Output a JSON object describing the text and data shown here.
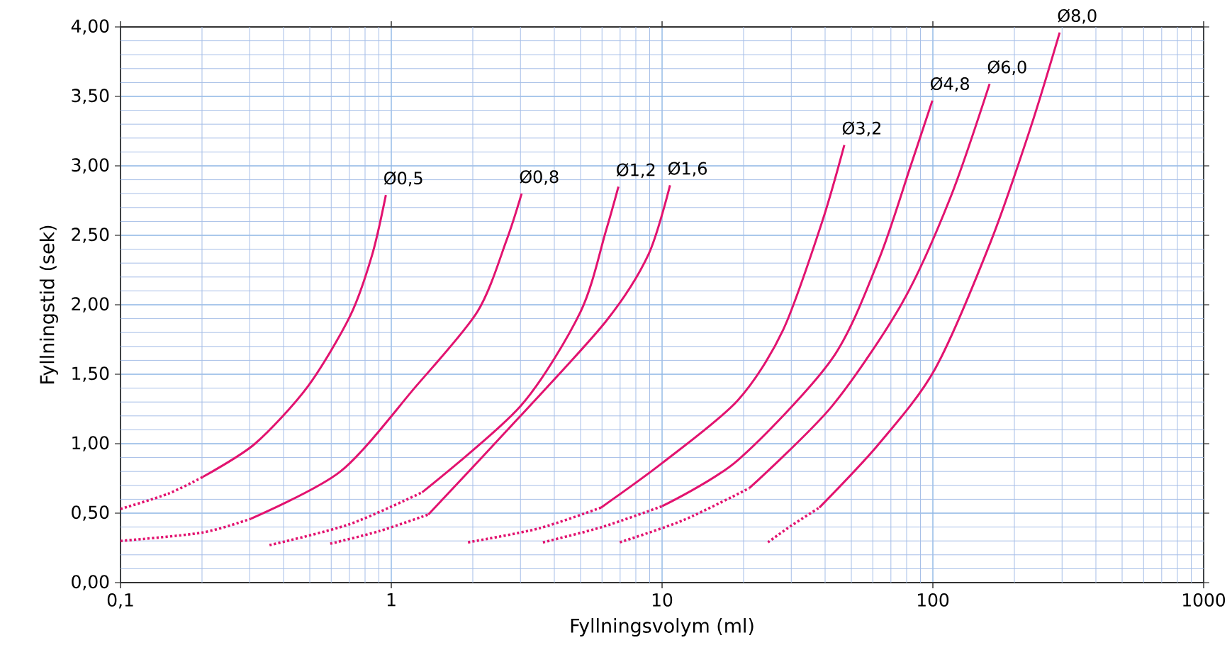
{
  "chart_data": {
    "type": "line",
    "xlabel": "Fyllningsvolym (ml)",
    "ylabel": "Fyllningstid (sek)",
    "log": "x",
    "grid": true,
    "legend": false,
    "marker": "none",
    "xlim": [
      0.1,
      1000
    ],
    "ylim": [
      0,
      4
    ],
    "xticks": [
      {
        "value": 0.1,
        "label": "0,1"
      },
      1,
      10,
      100,
      1000,
      {
        "value": 0.2,
        "label": null
      },
      {
        "value": 0.3,
        "label": null
      },
      {
        "value": 0.4,
        "label": null
      },
      {
        "value": 0.5,
        "label": null
      },
      {
        "value": 0.6,
        "label": null
      },
      {
        "value": 0.7,
        "label": null
      },
      {
        "value": 0.8,
        "label": null
      },
      {
        "value": 0.9,
        "label": null
      },
      {
        "value": 2,
        "label": null
      },
      {
        "value": 3,
        "label": null
      },
      {
        "value": 4,
        "label": null
      },
      {
        "value": 5,
        "label": null
      },
      {
        "value": 6,
        "label": null
      },
      {
        "value": 7,
        "label": null
      },
      {
        "value": 8,
        "label": null
      },
      {
        "value": 9,
        "label": null
      },
      {
        "value": 20,
        "label": null
      },
      {
        "value": 30,
        "label": null
      },
      {
        "value": 40,
        "label": null
      },
      {
        "value": 50,
        "label": null
      },
      {
        "value": 60,
        "label": null
      },
      {
        "value": 70,
        "label": null
      },
      {
        "value": 80,
        "label": null
      },
      {
        "value": 90,
        "label": null
      },
      {
        "value": 200,
        "label": null
      },
      {
        "value": 300,
        "label": null
      },
      {
        "value": 400,
        "label": null
      },
      {
        "value": 500,
        "label": null
      },
      {
        "value": 600,
        "label": null
      },
      {
        "value": 700,
        "label": null
      },
      {
        "value": 800,
        "label": null
      },
      {
        "value": 900,
        "label": null
      }
    ],
    "yticks": [
      {
        "value": 0,
        "label": "0,00"
      },
      {
        "value": 0.5,
        "label": "0,50"
      },
      {
        "value": 1,
        "label": "1,00"
      },
      {
        "value": 1.5,
        "label": "1,50"
      },
      {
        "value": 2,
        "label": "2,00"
      },
      {
        "value": 2.5,
        "label": "2,50"
      },
      {
        "value": 3,
        "label": "3,00"
      },
      {
        "value": 3.5,
        "label": "3,50"
      },
      {
        "value": 4,
        "label": "4,00"
      },
      {
        "value": 0.1,
        "label": null
      },
      {
        "value": 0.2,
        "label": null
      },
      {
        "value": 0.3,
        "label": null
      },
      {
        "value": 0.4,
        "label": null
      },
      {
        "value": 0.6,
        "label": null
      },
      {
        "value": 0.7,
        "label": null
      },
      {
        "value": 0.8,
        "label": null
      },
      {
        "value": 0.9,
        "label": null
      },
      {
        "value": 1.1,
        "label": null
      },
      {
        "value": 1.2,
        "label": null
      },
      {
        "value": 1.3,
        "label": null
      },
      {
        "value": 1.4,
        "label": null
      },
      {
        "value": 1.6,
        "label": null
      },
      {
        "value": 1.7,
        "label": null
      },
      {
        "value": 1.8,
        "label": null
      },
      {
        "value": 1.9,
        "label": null
      },
      {
        "value": 2.1,
        "label": null
      },
      {
        "value": 2.2,
        "label": null
      },
      {
        "value": 2.3,
        "label": null
      },
      {
        "value": 2.4,
        "label": null
      },
      {
        "value": 2.6,
        "label": null
      },
      {
        "value": 2.7,
        "label": null
      },
      {
        "value": 2.8,
        "label": null
      },
      {
        "value": 2.9,
        "label": null
      },
      {
        "value": 3.1,
        "label": null
      },
      {
        "value": 3.2,
        "label": null
      },
      {
        "value": 3.3,
        "label": null
      },
      {
        "value": 3.4,
        "label": null
      },
      {
        "value": 3.6,
        "label": null
      },
      {
        "value": 3.7,
        "label": null
      },
      {
        "value": 3.8,
        "label": null
      },
      {
        "value": 3.9,
        "label": null
      }
    ],
    "series": [
      {
        "color": "#e2136f",
        "line_style": "dotted",
        "x": [
          0.1,
          0.15,
          0.201
        ],
        "values": [
          0.53,
          0.64,
          0.76
        ]
      },
      {
        "name": "Ø0,5",
        "color": "#e2136f",
        "line_style": "solid",
        "x": [
          0.201,
          0.314,
          0.491,
          0.705,
          0.85,
          0.955
        ],
        "values": [
          0.76,
          1.0,
          1.41,
          1.92,
          2.36,
          2.79
        ]
      },
      {
        "color": "#e2136f",
        "line_style": "dotted",
        "x": [
          0.1,
          0.2,
          0.303
        ],
        "values": [
          0.3,
          0.36,
          0.46
        ]
      },
      {
        "name": "Ø0,8",
        "color": "#e2136f",
        "line_style": "solid",
        "x": [
          0.303,
          0.649,
          1.23,
          2.08,
          2.66,
          3.03
        ],
        "values": [
          0.46,
          0.8,
          1.41,
          1.95,
          2.46,
          2.8
        ]
      },
      {
        "color": "#e2136f",
        "line_style": "dotted",
        "x": [
          0.355,
          0.7,
          1.3
        ],
        "values": [
          0.27,
          0.42,
          0.65
        ]
      },
      {
        "name": "Ø1,2",
        "color": "#e2136f",
        "line_style": "solid",
        "x": [
          1.3,
          3.0,
          5.0,
          6.2,
          6.9
        ],
        "values": [
          0.65,
          1.27,
          1.95,
          2.53,
          2.85
        ]
      },
      {
        "color": "#e2136f",
        "line_style": "dotted",
        "x": [
          0.595,
          0.9,
          1.37
        ],
        "values": [
          0.28,
          0.37,
          0.49
        ]
      },
      {
        "name": "Ø1,6",
        "color": "#e2136f",
        "line_style": "solid",
        "x": [
          1.37,
          3.0,
          6.2,
          8.9,
          10.7
        ],
        "values": [
          0.49,
          1.2,
          1.88,
          2.36,
          2.86
        ]
      },
      {
        "color": "#e2136f",
        "line_style": "dotted",
        "x": [
          1.92,
          3.5,
          5.95
        ],
        "values": [
          0.29,
          0.39,
          0.54
        ]
      },
      {
        "name": "Ø3,2",
        "color": "#e2136f",
        "line_style": "solid",
        "x": [
          5.95,
          10.0,
          19.0,
          28.0,
          38.9,
          47.1
        ],
        "values": [
          0.54,
          0.86,
          1.31,
          1.82,
          2.59,
          3.15
        ]
      },
      {
        "color": "#e2136f",
        "line_style": "dotted",
        "x": [
          3.63,
          6.0,
          10.0
        ],
        "values": [
          0.29,
          0.4,
          0.55
        ]
      },
      {
        "name": "Ø4,8",
        "color": "#e2136f",
        "line_style": "solid",
        "x": [
          10.0,
          19.0,
          42.4,
          63.3,
          82.8,
          99.6
        ],
        "values": [
          0.55,
          0.88,
          1.61,
          2.33,
          3.0,
          3.47
        ]
      },
      {
        "color": "#e2136f",
        "line_style": "dotted",
        "x": [
          6.98,
          12.0,
          21.0
        ],
        "values": [
          0.29,
          0.45,
          0.68
        ]
      },
      {
        "name": "Ø6,0",
        "color": "#e2136f",
        "line_style": "solid",
        "x": [
          21.0,
          42.4,
          77.4,
          116,
          162
        ],
        "values": [
          0.68,
          1.27,
          2.02,
          2.77,
          3.59
        ]
      },
      {
        "color": "#e2136f",
        "line_style": "dotted",
        "x": [
          24.6,
          30.0,
          38.1
        ],
        "values": [
          0.29,
          0.41,
          0.54
        ]
      },
      {
        "name": "Ø8,0",
        "color": "#e2136f",
        "line_style": "solid",
        "x": [
          38.1,
          63.3,
          102,
          164,
          230,
          294
        ],
        "values": [
          0.54,
          1.0,
          1.54,
          2.46,
          3.28,
          3.96
        ]
      }
    ]
  }
}
